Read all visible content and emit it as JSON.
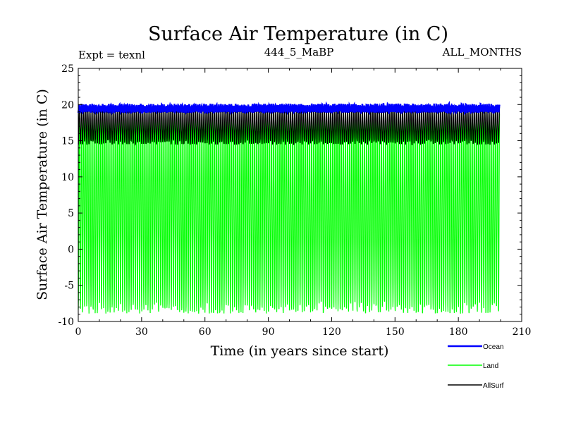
{
  "chart_data": {
    "type": "line",
    "title": "Surface Air Temperature (in C)",
    "subtitle_left": "Expt = texnl",
    "subtitle_center": "444_5_MaBP",
    "subtitle_right": "ALL_MONTHS",
    "xlabel": "Time (in years since start)",
    "ylabel": "Surface Air Temperature (in C)",
    "xlim": [
      0,
      210
    ],
    "ylim": [
      -10,
      25
    ],
    "xticks": [
      0,
      30,
      60,
      90,
      120,
      150,
      180,
      210
    ],
    "yticks": [
      -10,
      -5,
      0,
      5,
      10,
      15,
      20,
      25
    ],
    "x_range": [
      0,
      199.5
    ],
    "series": [
      {
        "name": "Ocean",
        "color": "#0000ff",
        "summer_peak": 19.9,
        "winter_trough": 19.0,
        "peak_variation": 0.25
      },
      {
        "name": "Land",
        "color": "#00ff00",
        "summer_peak": 19.4,
        "winter_trough": -8.5,
        "peak_variation": 0.3,
        "trough_variation": 0.9
      },
      {
        "name": "AllSurf",
        "color": "#000000",
        "summer_peak": 19.6,
        "winter_trough": 14.7,
        "peak_variation": 0.2,
        "trough_variation": 0.35
      }
    ]
  }
}
